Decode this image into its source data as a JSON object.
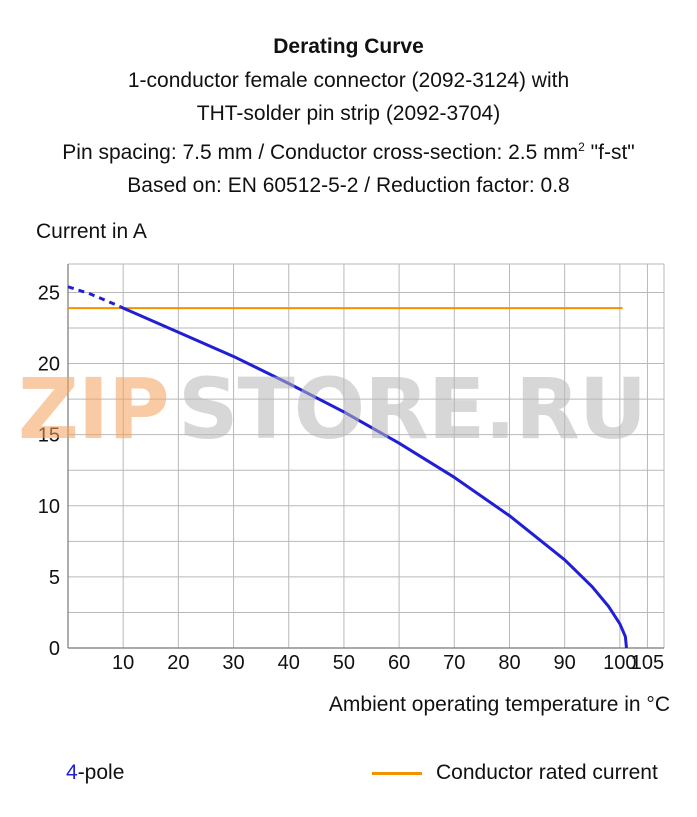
{
  "title": {
    "line1": "Derating Curve",
    "line2": "1-conductor female connector (2092-3124) with",
    "line3": "THT-solder pin strip (2092-3704)",
    "line4_a": "Pin spacing: 7.5 mm / Conductor cross-section: 2.5 mm",
    "line4_sup": "2",
    "line4_b": " \"f-st\"",
    "line5": "Based on: EN 60512-5-2 / Reduction factor: 0.8"
  },
  "watermark": {
    "part1": "ZIP",
    "part2": "STORE.RU"
  },
  "legend": {
    "series_number": "4",
    "series_suffix": "-pole",
    "rated_label": "Conductor rated current"
  },
  "colors": {
    "curve": "#1f1fd6",
    "rated": "#f39200",
    "grid": "#b9b9b9",
    "wm_orange": "#f5a15a",
    "wm_gray": "#c8c8c8"
  },
  "chart_data": {
    "type": "line",
    "xlabel": "Ambient operating temperature in °C",
    "ylabel": "Current in A",
    "xlim": [
      0,
      108
    ],
    "ylim": [
      0,
      27
    ],
    "x_ticks": [
      10,
      20,
      30,
      40,
      50,
      60,
      70,
      80,
      90,
      100,
      105
    ],
    "y_ticks": [
      0,
      5,
      10,
      15,
      20,
      25
    ],
    "grid": true,
    "series": [
      {
        "name": "4-pole",
        "dashed_segment": [
          [
            0,
            25.4
          ],
          [
            4,
            24.9
          ],
          [
            9.5,
            24.0
          ]
        ],
        "values": [
          [
            9.5,
            24.0
          ],
          [
            10,
            23.9
          ],
          [
            20,
            22.2
          ],
          [
            30,
            20.5
          ],
          [
            40,
            18.6
          ],
          [
            50,
            16.6
          ],
          [
            60,
            14.4
          ],
          [
            70,
            12.0
          ],
          [
            80,
            9.3
          ],
          [
            90,
            6.2
          ],
          [
            95,
            4.3
          ],
          [
            98,
            2.9
          ],
          [
            100,
            1.7
          ],
          [
            101,
            0.8
          ],
          [
            101.2,
            0.0
          ]
        ]
      },
      {
        "name": "Conductor rated current",
        "values": [
          [
            0,
            23.9
          ],
          [
            100.5,
            23.9
          ]
        ]
      }
    ]
  }
}
